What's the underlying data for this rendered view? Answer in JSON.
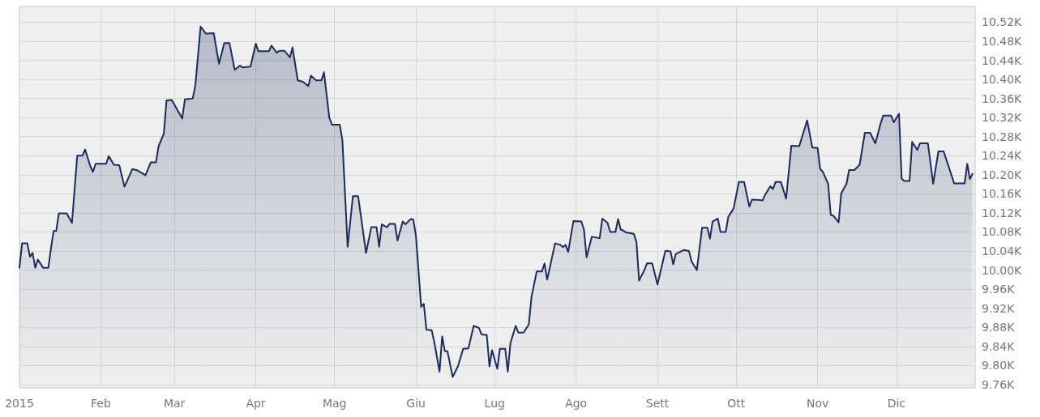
{
  "chart_data": {
    "type": "area",
    "marker": "none",
    "grid": true,
    "x": [
      "2015-01-01",
      "2015-01-02",
      "2015-01-04",
      "2015-01-05",
      "2015-01-06",
      "2015-01-07",
      "2015-01-08",
      "2015-01-10",
      "2015-01-12",
      "2015-01-13",
      "2015-01-14",
      "2015-01-15",
      "2015-01-16",
      "2015-01-19",
      "2015-01-21",
      "2015-01-23",
      "2015-01-25",
      "2015-01-26",
      "2015-01-28",
      "2015-01-29",
      "2015-01-30",
      "2015-02-03",
      "2015-02-04",
      "2015-02-06",
      "2015-02-08",
      "2015-02-10",
      "2015-02-13",
      "2015-02-15",
      "2015-02-18",
      "2015-02-20",
      "2015-02-22",
      "2015-02-23",
      "2015-02-25",
      "2015-02-26",
      "2015-02-28",
      "2015-03-04",
      "2015-03-05",
      "2015-03-08",
      "2015-03-09",
      "2015-03-11",
      "2015-03-13",
      "2015-03-16",
      "2015-03-18",
      "2015-03-20",
      "2015-03-22",
      "2015-03-24",
      "2015-03-26",
      "2015-03-27",
      "2015-03-30",
      "2015-04-01",
      "2015-04-02",
      "2015-04-06",
      "2015-04-07",
      "2015-04-09",
      "2015-04-10",
      "2015-04-12",
      "2015-04-14",
      "2015-04-15",
      "2015-04-17",
      "2015-04-19",
      "2015-04-21",
      "2015-04-22",
      "2015-04-24",
      "2015-04-26",
      "2015-04-27",
      "2015-04-29",
      "2015-04-30",
      "2015-05-03",
      "2015-05-04",
      "2015-05-06",
      "2015-05-08",
      "2015-05-10",
      "2015-05-13",
      "2015-05-15",
      "2015-05-17",
      "2015-05-18",
      "2015-05-19",
      "2015-05-21",
      "2015-05-22",
      "2015-05-24",
      "2015-05-25",
      "2015-05-27",
      "2015-05-28",
      "2015-05-30",
      "2015-05-31",
      "2015-06-01",
      "2015-06-03",
      "2015-06-04",
      "2015-06-05",
      "2015-06-07",
      "2015-06-08",
      "2015-06-10",
      "2015-06-11",
      "2015-06-12",
      "2015-06-13",
      "2015-06-15",
      "2015-06-17",
      "2015-06-19",
      "2015-06-21",
      "2015-06-23",
      "2015-06-25",
      "2015-06-26",
      "2015-06-28",
      "2015-06-29",
      "2015-06-30",
      "2015-07-02",
      "2015-07-03",
      "2015-07-05",
      "2015-07-06",
      "2015-07-07",
      "2015-07-09",
      "2015-07-10",
      "2015-07-12",
      "2015-07-14",
      "2015-07-15",
      "2015-07-17",
      "2015-07-19",
      "2015-07-20",
      "2015-07-21",
      "2015-07-24",
      "2015-07-26",
      "2015-07-27",
      "2015-07-28",
      "2015-07-29",
      "2015-07-31",
      "2015-08-03",
      "2015-08-04",
      "2015-08-05",
      "2015-08-07",
      "2015-08-10",
      "2015-08-11",
      "2015-08-13",
      "2015-08-14",
      "2015-08-16",
      "2015-08-17",
      "2015-08-18",
      "2015-08-19",
      "2015-08-20",
      "2015-08-23",
      "2015-08-24",
      "2015-08-25",
      "2015-08-27",
      "2015-08-28",
      "2015-08-30",
      "2015-09-01",
      "2015-09-04",
      "2015-09-05",
      "2015-09-06",
      "2015-09-07",
      "2015-09-08",
      "2015-09-11",
      "2015-09-13",
      "2015-09-14",
      "2015-09-16",
      "2015-09-18",
      "2015-09-20",
      "2015-09-21",
      "2015-09-22",
      "2015-09-24",
      "2015-09-25",
      "2015-09-27",
      "2015-09-28",
      "2015-09-30",
      "2015-10-02",
      "2015-10-04",
      "2015-10-06",
      "2015-10-07",
      "2015-10-10",
      "2015-10-11",
      "2015-10-12",
      "2015-10-14",
      "2015-10-15",
      "2015-10-16",
      "2015-10-18",
      "2015-10-20",
      "2015-10-22",
      "2015-10-25",
      "2015-10-28",
      "2015-10-30",
      "2015-11-01",
      "2015-11-02",
      "2015-11-03",
      "2015-11-05",
      "2015-11-06",
      "2015-11-07",
      "2015-11-09",
      "2015-11-10",
      "2015-11-12",
      "2015-11-13",
      "2015-11-15",
      "2015-11-17",
      "2015-11-19",
      "2015-11-21",
      "2015-11-23",
      "2015-11-25",
      "2015-11-26",
      "2015-11-29",
      "2015-11-30",
      "2015-12-02",
      "2015-12-03",
      "2015-12-04",
      "2015-12-06",
      "2015-12-07",
      "2015-12-09",
      "2015-12-10",
      "2015-12-13",
      "2015-12-15",
      "2015-12-17",
      "2015-12-19",
      "2015-12-23",
      "2015-12-27",
      "2015-12-28",
      "2015-12-29",
      "2015-12-30"
    ],
    "series": [
      {
        "color": "#1c2a5e",
        "values": [
          10005,
          10056,
          10056,
          10028,
          10036,
          10005,
          10022,
          10005,
          10005,
          10045,
          10082,
          10082,
          10119,
          10119,
          10099,
          10240,
          10240,
          10253,
          10218,
          10206,
          10223,
          10223,
          10239,
          10221,
          10220,
          10175,
          10212,
          10209,
          10199,
          10226,
          10226,
          10260,
          10286,
          10356,
          10357,
          10318,
          10358,
          10360,
          10388,
          10511,
          10496,
          10497,
          10433,
          10476,
          10476,
          10420,
          10429,
          10425,
          10427,
          10475,
          10459,
          10459,
          10471,
          10456,
          10460,
          10460,
          10446,
          10467,
          10398,
          10395,
          10386,
          10408,
          10398,
          10398,
          10415,
          10320,
          10305,
          10305,
          10272,
          10049,
          10155,
          10155,
          10036,
          10090,
          10090,
          10049,
          10096,
          10090,
          10097,
          10097,
          10062,
          10102,
          10096,
          10107,
          10106,
          10073,
          9923,
          9929,
          9875,
          9874,
          9849,
          9787,
          9861,
          9830,
          9830,
          9776,
          9798,
          9835,
          9836,
          9883,
          9879,
          9865,
          9864,
          9798,
          9832,
          9793,
          9835,
          9835,
          9787,
          9847,
          9883,
          9869,
          9869,
          9886,
          9943,
          9997,
          9997,
          10014,
          9980,
          10056,
          10053,
          10048,
          10053,
          10038,
          10103,
          10102,
          10085,
          10027,
          10070,
          10067,
          10108,
          10099,
          10080,
          10080,
          10107,
          10085,
          10083,
          10079,
          10076,
          10059,
          9978,
          10000,
          10014,
          10014,
          9970,
          10040,
          10040,
          10039,
          10012,
          10034,
          10042,
          10040,
          10018,
          10000,
          10089,
          10089,
          10066,
          10102,
          10108,
          10080,
          10080,
          10112,
          10129,
          10185,
          10185,
          10133,
          10148,
          10147,
          10146,
          10158,
          10176,
          10170,
          10185,
          10185,
          10150,
          10261,
          10260,
          10314,
          10257,
          10256,
          10212,
          10206,
          10181,
          10116,
          10114,
          10100,
          10161,
          10181,
          10210,
          10210,
          10221,
          10288,
          10288,
          10266,
          10308,
          10324,
          10324,
          10310,
          10328,
          10192,
          10187,
          10187,
          10269,
          10252,
          10266,
          10266,
          10181,
          10249,
          10249,
          10182,
          10182,
          10223,
          10191,
          10202
        ]
      }
    ],
    "xlim": [
      "2015-01-01",
      "2015-12-31"
    ],
    "xticks": [
      {
        "value": "2015-01-01",
        "label": "2015"
      },
      {
        "value": "2015-02-01",
        "label": "Feb"
      },
      {
        "value": "2015-03-01",
        "label": "Mar"
      },
      {
        "value": "2015-04-01",
        "label": "Apr"
      },
      {
        "value": "2015-05-01",
        "label": "Mag"
      },
      {
        "value": "2015-06-01",
        "label": "Giu"
      },
      {
        "value": "2015-07-01",
        "label": "Lug"
      },
      {
        "value": "2015-08-01",
        "label": "Ago"
      },
      {
        "value": "2015-09-01",
        "label": "Sett"
      },
      {
        "value": "2015-10-01",
        "label": "Ott"
      },
      {
        "value": "2015-11-01",
        "label": "Nov"
      },
      {
        "value": "2015-12-01",
        "label": "Dic"
      }
    ],
    "ylim": [
      9753,
      10553
    ],
    "yticks": [
      {
        "value": 9760,
        "label": "9.76K"
      },
      {
        "value": 9800,
        "label": "9.80K"
      },
      {
        "value": 9840,
        "label": "9.84K"
      },
      {
        "value": 9880,
        "label": "9.88K"
      },
      {
        "value": 9920,
        "label": "9.92K"
      },
      {
        "value": 9960,
        "label": "9.96K"
      },
      {
        "value": 10000,
        "label": "10.00K"
      },
      {
        "value": 10040,
        "label": "10.04K"
      },
      {
        "value": 10080,
        "label": "10.08K"
      },
      {
        "value": 10120,
        "label": "10.12K"
      },
      {
        "value": 10160,
        "label": "10.16K"
      },
      {
        "value": 10200,
        "label": "10.20K"
      },
      {
        "value": 10240,
        "label": "10.24K"
      },
      {
        "value": 10280,
        "label": "10.28K"
      },
      {
        "value": 10320,
        "label": "10.32K"
      },
      {
        "value": 10360,
        "label": "10.36K"
      },
      {
        "value": 10400,
        "label": "10.40K"
      },
      {
        "value": 10440,
        "label": "10.44K"
      },
      {
        "value": 10480,
        "label": "10.48K"
      },
      {
        "value": 10520,
        "label": "10.52K"
      }
    ]
  }
}
